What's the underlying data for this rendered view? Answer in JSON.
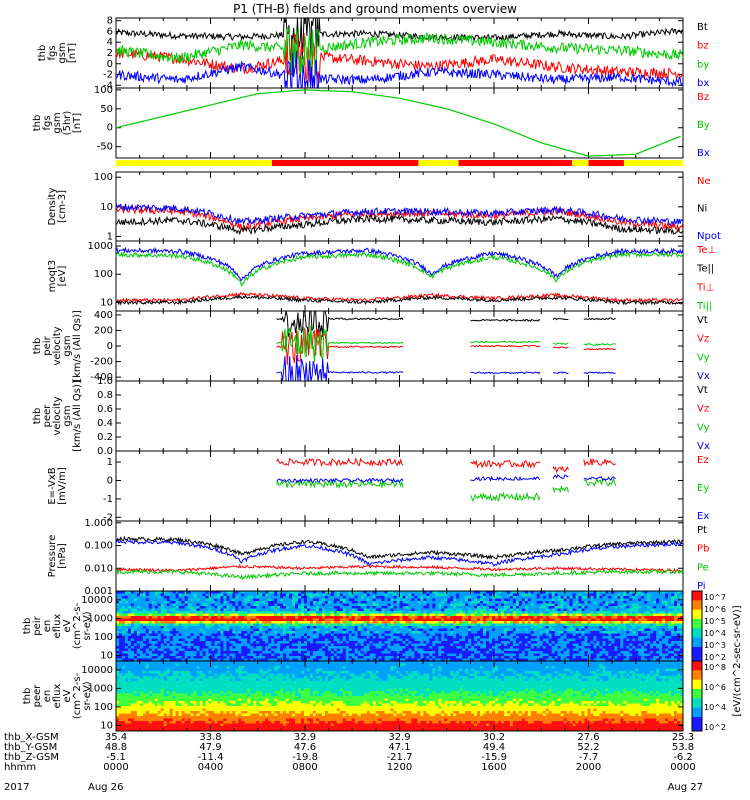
{
  "title": "P1 (TH-B) fields and ground moments overview",
  "chart_data": [
    {
      "type": "line",
      "ylabel": [
        "thb",
        "fgs",
        "gsm",
        "[nT]"
      ],
      "yticks": [
        "8",
        "6",
        "4",
        "2",
        "0",
        "-2",
        "-4"
      ],
      "ylim": [
        -4.5,
        8.5
      ],
      "legend": [
        {
          "name": "Bt",
          "color": "#000000"
        },
        {
          "name": "bz",
          "color": "#ff0000"
        },
        {
          "name": "by",
          "color": "#00cc00"
        },
        {
          "name": "bx",
          "color": "#0000ff"
        }
      ],
      "series": [
        {
          "name": "Bt",
          "color": "#000000",
          "levels": [
            5.8,
            5.2,
            5.0,
            5.5,
            5.6,
            5.0,
            4.8,
            5.6,
            5.0,
            6.2
          ],
          "noise": 0.6
        },
        {
          "name": "bz",
          "color": "#ff0000",
          "levels": [
            2.0,
            1.0,
            -1.0,
            1.5,
            0.5,
            -0.5,
            0.8,
            -0.6,
            -1.5,
            -1.8
          ],
          "noise": 1.0
        },
        {
          "name": "by",
          "color": "#00cc00",
          "levels": [
            2.5,
            1.0,
            3.5,
            2.5,
            4.0,
            4.8,
            4.0,
            3.0,
            2.5,
            1.5
          ],
          "noise": 1.0
        },
        {
          "name": "bx",
          "color": "#0000ff",
          "levels": [
            -2.0,
            -3.0,
            -0.5,
            -2.8,
            -3.0,
            -1.5,
            -2.0,
            -3.0,
            -2.5,
            -3.5
          ],
          "noise": 0.9
        }
      ]
    },
    {
      "type": "line",
      "ylabel": [
        "thb",
        "fgs",
        "gsm",
        "(5hr)",
        "[nT]"
      ],
      "yticks": [
        "100",
        "50",
        "0",
        "-50"
      ],
      "ylim": [
        -80,
        105
      ],
      "legend": [
        {
          "name": "Bz",
          "color": "#ff0000"
        },
        {
          "name": "By",
          "color": "#00cc00"
        },
        {
          "name": "Bx",
          "color": "#0000ff"
        }
      ],
      "series": [
        {
          "name": "By",
          "color": "#00cc00",
          "x": [
            0,
            2,
            4,
            6,
            8,
            10,
            12,
            14,
            16,
            18,
            20,
            22,
            24
          ],
          "y": [
            0,
            30,
            60,
            90,
            100,
            95,
            78,
            50,
            10,
            -40,
            -75,
            -70,
            -20
          ]
        }
      ]
    },
    {
      "type": "bar-strip",
      "segments": [
        {
          "x0": 0,
          "x1": 6.6,
          "color": "#ffff00"
        },
        {
          "x0": 6.6,
          "x1": 12.8,
          "color": "#ff0000"
        },
        {
          "x0": 12.8,
          "x1": 14.5,
          "color": "#ffff00"
        },
        {
          "x0": 14.5,
          "x1": 19.3,
          "color": "#ff0000"
        },
        {
          "x0": 19.3,
          "x1": 20.0,
          "color": "#ffff00"
        },
        {
          "x0": 20.0,
          "x1": 21.5,
          "color": "#ff0000"
        },
        {
          "x0": 21.5,
          "x1": 24,
          "color": "#ffff00"
        }
      ]
    },
    {
      "type": "line",
      "scale": "log",
      "ylabel": [
        "Density",
        "[cm-3]"
      ],
      "yticks": [
        "100",
        "10",
        "1"
      ],
      "ylim": [
        0.7,
        150
      ],
      "legend": [
        {
          "name": "Ne",
          "color": "#ff0000"
        },
        {
          "name": "Ni",
          "color": "#000000"
        },
        {
          "name": "Npot",
          "color": "#0000ff"
        }
      ],
      "series": [
        {
          "name": "Ne",
          "color": "#ff0000",
          "levels": [
            8,
            7,
            2,
            4,
            6,
            6,
            5,
            7,
            3,
            2
          ],
          "noise": 0.12
        },
        {
          "name": "Ni",
          "color": "#000000",
          "levels": [
            3,
            3.5,
            1.5,
            2.5,
            4,
            3.5,
            3,
            4,
            1.8,
            1.5
          ],
          "noise": 0.12
        },
        {
          "name": "Npot",
          "color": "#0000ff",
          "levels": [
            10,
            9,
            3,
            5,
            7,
            7,
            6,
            8,
            4,
            3
          ],
          "noise": 0.12
        }
      ]
    },
    {
      "type": "line",
      "scale": "log",
      "ylabel": [
        "moqt3",
        "[eV]"
      ],
      "yticks": [
        "1000",
        "100",
        "10"
      ],
      "ylim": [
        5,
        1500
      ],
      "legend": [
        {
          "name": "Te⊥",
          "color": "#ff0000"
        },
        {
          "name": "Te||",
          "color": "#000000"
        },
        {
          "name": "Ti⊥",
          "color": "#ff0000"
        },
        {
          "name": "Ti||",
          "color": "#00cc00"
        }
      ],
      "series": [
        {
          "name": "Ti||",
          "color": "#00cc00",
          "levels": [
            500,
            450,
            40,
            400,
            500,
            80,
            400,
            60,
            500,
            500
          ],
          "noise": 0.08
        },
        {
          "name": "Ti⊥",
          "color": "#0000ff",
          "levels": [
            700,
            650,
            60,
            550,
            700,
            100,
            550,
            80,
            650,
            650
          ],
          "noise": 0.08
        },
        {
          "name": "Te⊥",
          "color": "#ff0000",
          "levels": [
            12,
            12,
            20,
            14,
            12,
            18,
            14,
            18,
            12,
            12
          ],
          "noise": 0.06
        },
        {
          "name": "Te||",
          "color": "#000000",
          "levels": [
            10,
            10,
            16,
            12,
            10,
            15,
            12,
            15,
            10,
            10
          ],
          "noise": 0.06
        }
      ]
    },
    {
      "type": "line",
      "ylabel": [
        "thb",
        "peir",
        "velocity",
        "gsm",
        "[km/s (All Qs)]"
      ],
      "yticks": [
        "400",
        "200",
        "0",
        "-200",
        "-400"
      ],
      "ylim": [
        -450,
        450
      ],
      "legend": [
        {
          "name": "Vt",
          "color": "#000000"
        },
        {
          "name": "Vz",
          "color": "#ff0000"
        },
        {
          "name": "Vy",
          "color": "#00cc00"
        },
        {
          "name": "Vx",
          "color": "#0000ff"
        }
      ],
      "series": [
        {
          "name": "Vt",
          "color": "#000000",
          "segments": [
            [
              6.8,
              12.2,
              350
            ],
            [
              15.0,
              18.0,
              330
            ],
            [
              18.5,
              19.2,
              345
            ],
            [
              19.8,
              21.2,
              350
            ]
          ],
          "noise": 12
        },
        {
          "name": "Vz",
          "color": "#ff0000",
          "segments": [
            [
              6.8,
              12.2,
              -10
            ],
            [
              15.0,
              18.0,
              0
            ],
            [
              18.5,
              19.2,
              -20
            ],
            [
              19.8,
              21.2,
              -40
            ]
          ],
          "noise": 10
        },
        {
          "name": "Vy",
          "color": "#00cc00",
          "segments": [
            [
              6.8,
              12.2,
              40
            ],
            [
              15.0,
              18.0,
              50
            ],
            [
              18.5,
              19.2,
              30
            ],
            [
              19.8,
              21.2,
              20
            ]
          ],
          "noise": 10
        },
        {
          "name": "Vx",
          "color": "#0000ff",
          "segments": [
            [
              6.8,
              12.2,
              -340
            ],
            [
              15.0,
              18.0,
              -345
            ],
            [
              18.5,
              19.2,
              -345
            ],
            [
              19.8,
              21.2,
              -345
            ]
          ],
          "noise": 10
        }
      ]
    },
    {
      "type": "line",
      "ylabel": [
        "thb",
        "peer",
        "velocity",
        "gsm",
        "[km/s (All Qs)]"
      ],
      "yticks": [
        "1.0",
        "0.8",
        "0.6",
        "0.4",
        "0.2",
        "0.0"
      ],
      "ylim": [
        0,
        1.0
      ],
      "legend": [
        {
          "name": "Vt",
          "color": "#000000"
        },
        {
          "name": "Vz",
          "color": "#ff0000"
        },
        {
          "name": "Vy",
          "color": "#00cc00"
        },
        {
          "name": "Vx",
          "color": "#0000ff"
        }
      ],
      "series": []
    },
    {
      "type": "line",
      "ylabel": [
        "E=-VxB",
        "[mV/m]"
      ],
      "yticks": [
        "1",
        "0",
        "-1",
        "-2"
      ],
      "ylim": [
        -2.2,
        1.6
      ],
      "legend": [
        {
          "name": "Ez",
          "color": "#ff0000"
        },
        {
          "name": "Ey",
          "color": "#00cc00"
        },
        {
          "name": "Ex",
          "color": "#0000ff"
        }
      ],
      "series": [
        {
          "name": "Ez",
          "color": "#ff0000",
          "segments": [
            [
              6.8,
              12.2,
              1.0
            ],
            [
              15.0,
              18.0,
              0.9
            ],
            [
              18.5,
              19.2,
              0.6
            ],
            [
              19.8,
              21.2,
              1.0
            ]
          ],
          "noise": 0.18
        },
        {
          "name": "Ey",
          "color": "#00cc00",
          "segments": [
            [
              6.8,
              12.2,
              -0.2
            ],
            [
              15.0,
              18.0,
              -0.9
            ],
            [
              18.5,
              19.2,
              -0.5
            ],
            [
              19.8,
              21.2,
              -0.1
            ]
          ],
          "noise": 0.2
        },
        {
          "name": "Ex",
          "color": "#0000ff",
          "segments": [
            [
              6.8,
              12.2,
              0.0
            ],
            [
              15.0,
              18.0,
              0.1
            ],
            [
              18.5,
              19.2,
              0.2
            ],
            [
              19.8,
              21.2,
              0.1
            ]
          ],
          "noise": 0.1
        }
      ]
    },
    {
      "type": "line",
      "scale": "log",
      "ylabel": [
        "Pressure",
        "[nPa]"
      ],
      "yticks": [
        "1.000",
        "0.100",
        "0.010",
        "0.001"
      ],
      "ylim": [
        0.001,
        1.2
      ],
      "legend": [
        {
          "name": "Pt",
          "color": "#000000"
        },
        {
          "name": "Pb",
          "color": "#ff0000"
        },
        {
          "name": "Pe",
          "color": "#00cc00"
        },
        {
          "name": "Pi",
          "color": "#0000ff"
        }
      ],
      "series": [
        {
          "name": "Pt",
          "color": "#000000",
          "levels": [
            0.2,
            0.18,
            0.04,
            0.15,
            0.03,
            0.05,
            0.03,
            0.06,
            0.12,
            0.15
          ],
          "noise": 0.08
        },
        {
          "name": "Pi",
          "color": "#0000ff",
          "levels": [
            0.15,
            0.13,
            0.02,
            0.1,
            0.015,
            0.03,
            0.015,
            0.04,
            0.09,
            0.12
          ],
          "noise": 0.08
        },
        {
          "name": "Pb",
          "color": "#ff0000",
          "levels": [
            0.009,
            0.008,
            0.012,
            0.01,
            0.012,
            0.011,
            0.009,
            0.01,
            0.009,
            0.008
          ],
          "noise": 0.06
        },
        {
          "name": "Pe",
          "color": "#00cc00",
          "levels": [
            0.007,
            0.007,
            0.004,
            0.006,
            0.006,
            0.006,
            0.005,
            0.006,
            0.007,
            0.007
          ],
          "noise": 0.08
        }
      ]
    },
    {
      "type": "heatmap",
      "scale": "log",
      "ylabel": [
        "thb",
        "peir",
        "en",
        "eflux",
        "eV",
        "(cm^2-s-",
        "sr-eV)"
      ],
      "yticks": [
        "10000",
        "1000",
        "100",
        "10"
      ],
      "ylim": [
        5,
        30000
      ],
      "colorbar_ticks": [
        "10^7",
        "10^6",
        "10^5",
        "10^4",
        "10^3",
        "10^2"
      ],
      "colorbar_label": "[eV/(cm^2-sec-sr-eV)]"
    },
    {
      "type": "heatmap",
      "scale": "log",
      "ylabel": [
        "thb",
        "peer",
        "en",
        "eflux",
        "eV",
        "(cm^2-s-",
        "sr-eV)"
      ],
      "yticks": [
        "10000",
        "1000",
        "100",
        "10"
      ],
      "ylim": [
        5,
        30000
      ],
      "colorbar_ticks": [
        "10^8",
        "10^6",
        "10^4",
        "10^2"
      ],
      "colorbar_label": "[eV/(cm^2-sec-sr-eV)]"
    }
  ],
  "xaxis": {
    "row_labels": [
      "thb_X-GSM",
      "thb_Y-GSM",
      "thb_Z-GSM",
      "hhmm",
      "2017"
    ],
    "columns": [
      {
        "x": 0,
        "vals": [
          "35.4",
          "48.8",
          "-5.1",
          "0000",
          "Aug 26"
        ]
      },
      {
        "x": 4,
        "vals": [
          "33.8",
          "47.9",
          "-11.4",
          "0400",
          ""
        ]
      },
      {
        "x": 8,
        "vals": [
          "32.9",
          "47.6",
          "-19.8",
          "0800",
          ""
        ]
      },
      {
        "x": 12,
        "vals": [
          "32.9",
          "47.1",
          "-21.7",
          "1200",
          ""
        ]
      },
      {
        "x": 16,
        "vals": [
          "30.2",
          "49.4",
          "-15.9",
          "1600",
          ""
        ]
      },
      {
        "x": 20,
        "vals": [
          "27.6",
          "52.2",
          "-7.7",
          "2000",
          ""
        ]
      },
      {
        "x": 24,
        "vals": [
          "25.3",
          "53.8",
          "-6.2",
          "0000",
          "Aug 27"
        ]
      }
    ]
  },
  "colorbar_label": "[eV/(cm^2-sec-sr-eV)]",
  "colors": {
    "black": "#000000",
    "red": "#ff0000",
    "green": "#00cc00",
    "blue": "#0000ff",
    "yellow": "#ffff00"
  }
}
